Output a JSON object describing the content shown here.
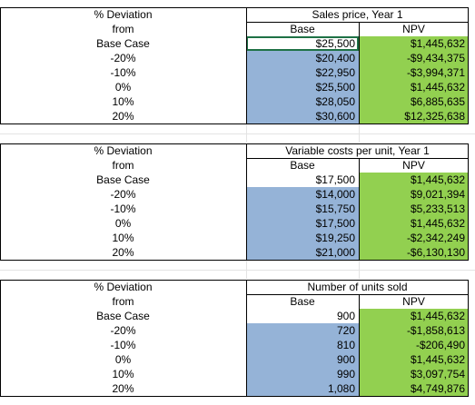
{
  "colors": {
    "base_fill": "#95b3d7",
    "npv_fill": "#92d050",
    "selected_border": "#1e7145"
  },
  "tables": [
    {
      "dev_header": [
        "% Deviation",
        "from",
        "Base Case"
      ],
      "title": "Sales price, Year 1",
      "base_header": "Base",
      "npv_header": "NPV",
      "base_value": "$25,500",
      "base_npv": "$1,445,632",
      "rows": [
        {
          "dev": "-20%",
          "base": "$20,400",
          "npv": "-$9,434,375"
        },
        {
          "dev": "-10%",
          "base": "$22,950",
          "npv": "-$3,994,371"
        },
        {
          "dev": "0%",
          "base": "$25,500",
          "npv": "$1,445,632"
        },
        {
          "dev": "10%",
          "base": "$28,050",
          "npv": "$6,885,635"
        },
        {
          "dev": "20%",
          "base": "$30,600",
          "npv": "$12,325,638"
        }
      ]
    },
    {
      "dev_header": [
        "% Deviation",
        "from",
        "Base Case"
      ],
      "title": "Variable costs per unit, Year 1",
      "base_header": "Base",
      "npv_header": "NPV",
      "base_value": "$17,500",
      "base_npv": "$1,445,632",
      "rows": [
        {
          "dev": "-20%",
          "base": "$14,000",
          "npv": "$9,021,394"
        },
        {
          "dev": "-10%",
          "base": "$15,750",
          "npv": "$5,233,513"
        },
        {
          "dev": "0%",
          "base": "$17,500",
          "npv": "$1,445,632"
        },
        {
          "dev": "10%",
          "base": "$19,250",
          "npv": "-$2,342,249"
        },
        {
          "dev": "20%",
          "base": "$21,000",
          "npv": "-$6,130,130"
        }
      ]
    },
    {
      "dev_header": [
        "% Deviation",
        "from",
        "Base Case"
      ],
      "title": "Number of units sold",
      "base_header": "Base",
      "npv_header": "NPV",
      "base_value": "900",
      "base_npv": "$1,445,632",
      "rows": [
        {
          "dev": "-20%",
          "base": "720",
          "npv": "-$1,858,613"
        },
        {
          "dev": "-10%",
          "base": "810",
          "npv": "-$206,490"
        },
        {
          "dev": "0%",
          "base": "900",
          "npv": "$1,445,632"
        },
        {
          "dev": "10%",
          "base": "990",
          "npv": "$3,097,754"
        },
        {
          "dev": "20%",
          "base": "1,080",
          "npv": "$4,749,876"
        }
      ]
    }
  ]
}
